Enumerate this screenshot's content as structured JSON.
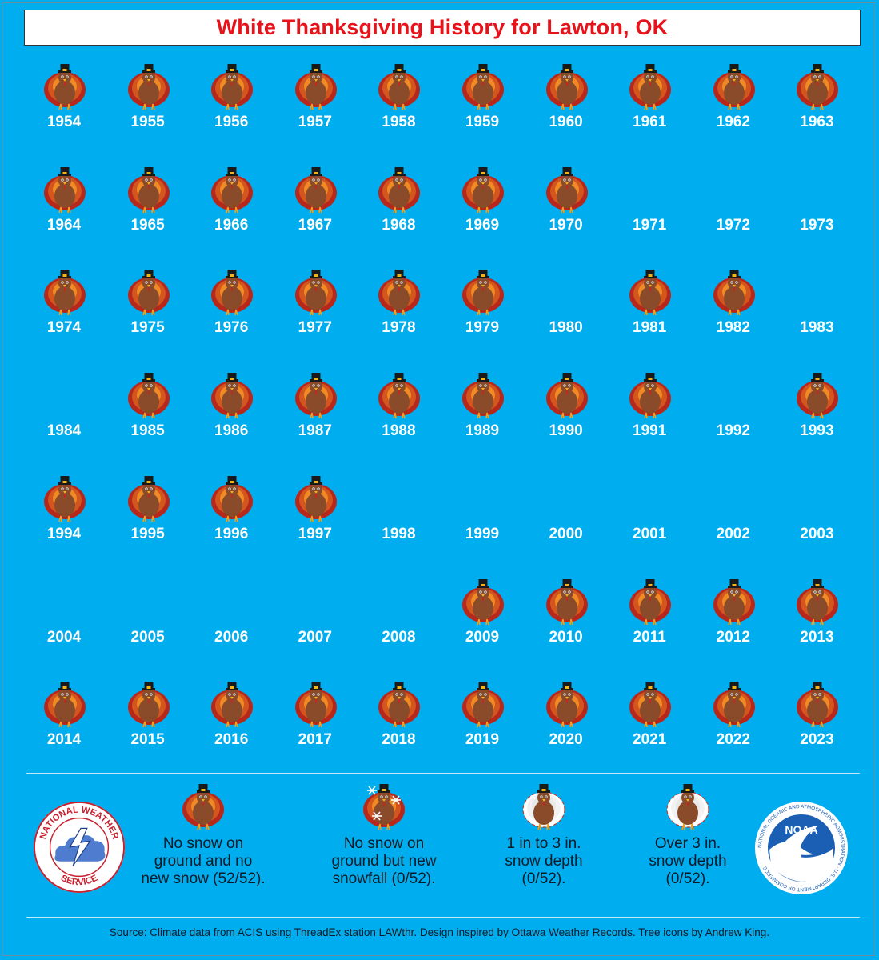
{
  "title": "White Thanksgiving History for Lawton, OK",
  "colors": {
    "background": "#00aeef",
    "title": "#e8121b",
    "year_text": "#ffffff",
    "turkey_body": "#8a4b2a",
    "turkey_feathers": "#d3561f",
    "hat": "#1a1a1a"
  },
  "rows": [
    {
      "cells": [
        {
          "year": "1954",
          "icon": "turkey-icon"
        },
        {
          "year": "1955",
          "icon": "turkey-icon"
        },
        {
          "year": "1956",
          "icon": "turkey-icon"
        },
        {
          "year": "1957",
          "icon": "turkey-icon"
        },
        {
          "year": "1958",
          "icon": "turkey-icon"
        },
        {
          "year": "1959",
          "icon": "turkey-icon"
        },
        {
          "year": "1960",
          "icon": "turkey-icon"
        },
        {
          "year": "1961",
          "icon": "turkey-icon"
        },
        {
          "year": "1962",
          "icon": "turkey-icon"
        },
        {
          "year": "1963",
          "icon": "turkey-icon"
        }
      ]
    },
    {
      "cells": [
        {
          "year": "1964",
          "icon": "turkey-icon"
        },
        {
          "year": "1965",
          "icon": "turkey-icon"
        },
        {
          "year": "1966",
          "icon": "turkey-icon"
        },
        {
          "year": "1967",
          "icon": "turkey-icon"
        },
        {
          "year": "1968",
          "icon": "turkey-icon"
        },
        {
          "year": "1969",
          "icon": "turkey-icon"
        },
        {
          "year": "1970",
          "icon": "turkey-icon"
        },
        {
          "year": "1971",
          "icon": ""
        },
        {
          "year": "1972",
          "icon": ""
        },
        {
          "year": "1973",
          "icon": ""
        }
      ]
    },
    {
      "cells": [
        {
          "year": "1974",
          "icon": "turkey-icon"
        },
        {
          "year": "1975",
          "icon": "turkey-icon"
        },
        {
          "year": "1976",
          "icon": "turkey-icon"
        },
        {
          "year": "1977",
          "icon": "turkey-icon"
        },
        {
          "year": "1978",
          "icon": "turkey-icon"
        },
        {
          "year": "1979",
          "icon": "turkey-icon"
        },
        {
          "year": "1980",
          "icon": ""
        },
        {
          "year": "1981",
          "icon": "turkey-icon"
        },
        {
          "year": "1982",
          "icon": "turkey-icon"
        },
        {
          "year": "1983",
          "icon": ""
        }
      ]
    },
    {
      "cells": [
        {
          "year": "1984",
          "icon": ""
        },
        {
          "year": "1985",
          "icon": "turkey-icon"
        },
        {
          "year": "1986",
          "icon": "turkey-icon"
        },
        {
          "year": "1987",
          "icon": "turkey-icon"
        },
        {
          "year": "1988",
          "icon": "turkey-icon"
        },
        {
          "year": "1989",
          "icon": "turkey-icon"
        },
        {
          "year": "1990",
          "icon": "turkey-icon"
        },
        {
          "year": "1991",
          "icon": "turkey-icon"
        },
        {
          "year": "1992",
          "icon": ""
        },
        {
          "year": "1993",
          "icon": "turkey-icon"
        }
      ]
    },
    {
      "cells": [
        {
          "year": "1994",
          "icon": "turkey-icon"
        },
        {
          "year": "1995",
          "icon": "turkey-icon"
        },
        {
          "year": "1996",
          "icon": "turkey-icon"
        },
        {
          "year": "1997",
          "icon": "turkey-icon"
        },
        {
          "year": "1998",
          "icon": ""
        },
        {
          "year": "1999",
          "icon": ""
        },
        {
          "year": "2000",
          "icon": ""
        },
        {
          "year": "2001",
          "icon": ""
        },
        {
          "year": "2002",
          "icon": ""
        },
        {
          "year": "2003",
          "icon": ""
        }
      ]
    },
    {
      "cells": [
        {
          "year": "2004",
          "icon": ""
        },
        {
          "year": "2005",
          "icon": ""
        },
        {
          "year": "2006",
          "icon": ""
        },
        {
          "year": "2007",
          "icon": ""
        },
        {
          "year": "2008",
          "icon": ""
        },
        {
          "year": "2009",
          "icon": "turkey-icon"
        },
        {
          "year": "2010",
          "icon": "turkey-icon"
        },
        {
          "year": "2011",
          "icon": "turkey-icon"
        },
        {
          "year": "2012",
          "icon": "turkey-icon"
        },
        {
          "year": "2013",
          "icon": "turkey-icon"
        }
      ]
    },
    {
      "cells": [
        {
          "year": "2014",
          "icon": "turkey-icon"
        },
        {
          "year": "2015",
          "icon": "turkey-icon"
        },
        {
          "year": "2016",
          "icon": "turkey-icon"
        },
        {
          "year": "2017",
          "icon": "turkey-icon"
        },
        {
          "year": "2018",
          "icon": "turkey-icon"
        },
        {
          "year": "2019",
          "icon": "turkey-icon"
        },
        {
          "year": "2020",
          "icon": "turkey-icon"
        },
        {
          "year": "2021",
          "icon": "turkey-icon"
        },
        {
          "year": "2022",
          "icon": "turkey-icon"
        },
        {
          "year": "2023",
          "icon": "turkey-icon"
        }
      ]
    }
  ],
  "legend": [
    {
      "icon": "turkey-icon",
      "text": "No snow on\nground and no\nnew snow (52/52)."
    },
    {
      "icon": "turkey-snowflake-icon",
      "text": "No snow on\nground but new\nsnowfall (0/52)."
    },
    {
      "icon": "turkey-light-snow-icon",
      "text": "1 in to 3 in.\nsnow depth\n(0/52)."
    },
    {
      "icon": "turkey-heavy-snow-icon",
      "text": "Over 3 in.\nsnow depth\n(0/52)."
    }
  ],
  "logos": {
    "nws": {
      "icon": "nws-logo-icon",
      "text": "NATIONAL WEATHER SERVICE"
    },
    "noaa": {
      "icon": "noaa-logo-icon",
      "text": "NOAA",
      "ring_text": "NATIONAL OCEANIC AND ATMOSPHERIC ADMINISTRATION · U.S. DEPARTMENT OF COMMERCE"
    }
  },
  "source": "Source: Climate data from ACIS using ThreadEx station LAWthr. Design inspired by Ottawa Weather Records. Tree icons by Andrew King."
}
